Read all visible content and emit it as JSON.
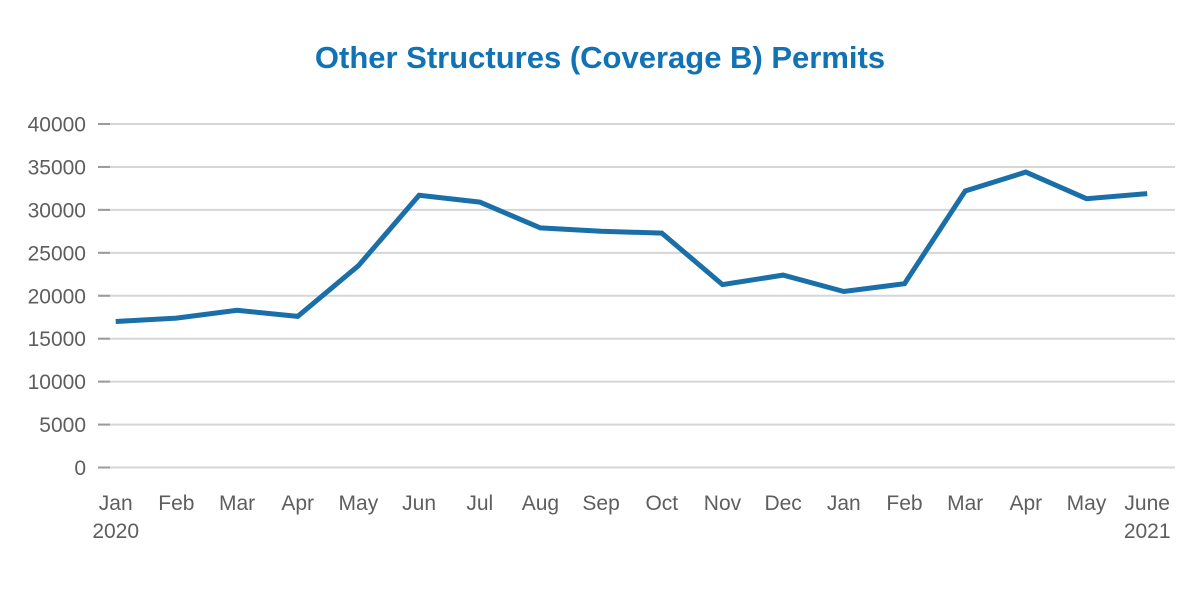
{
  "chart_data": {
    "type": "line",
    "title": "Other Structures (Coverage B) Permits",
    "xlabel": "",
    "ylabel": "",
    "categories": [
      "Jan",
      "Feb",
      "Mar",
      "Apr",
      "May",
      "Jun",
      "Jul",
      "Aug",
      "Sep",
      "Oct",
      "Nov",
      "Dec",
      "Jan",
      "Feb",
      "Mar",
      "Apr",
      "May",
      "June"
    ],
    "category_sublabels": [
      "2020",
      "",
      "",
      "",
      "",
      "",
      "",
      "",
      "",
      "",
      "",
      "",
      "",
      "",
      "",
      "",
      "",
      "2021"
    ],
    "series": [
      {
        "name": "Other Structures (Coverage B) Permits",
        "values": [
          17000,
          17400,
          18300,
          17600,
          23500,
          31700,
          30900,
          27900,
          27500,
          27300,
          21300,
          22400,
          20500,
          21400,
          32200,
          34400,
          31300,
          31900
        ]
      }
    ],
    "ylim": [
      0,
      40000
    ],
    "yticks": [
      0,
      5000,
      10000,
      15000,
      20000,
      25000,
      30000,
      35000,
      40000
    ],
    "grid": "horizontal",
    "legend": "none",
    "colors": {
      "title": "#1172B4",
      "line": "#1A6FA9",
      "axis_text": "#5E5E5E",
      "gridline": "#D6D6D6",
      "tick": "#9B9B9B"
    }
  }
}
